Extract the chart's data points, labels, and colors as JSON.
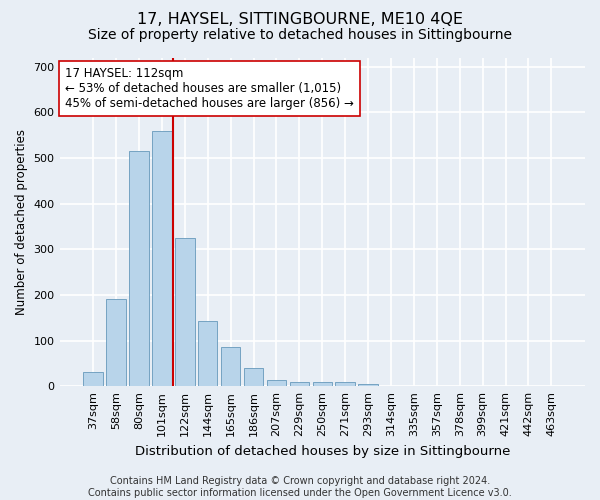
{
  "title": "17, HAYSEL, SITTINGBOURNE, ME10 4QE",
  "subtitle": "Size of property relative to detached houses in Sittingbourne",
  "xlabel": "Distribution of detached houses by size in Sittingbourne",
  "ylabel": "Number of detached properties",
  "categories": [
    "37sqm",
    "58sqm",
    "80sqm",
    "101sqm",
    "122sqm",
    "144sqm",
    "165sqm",
    "186sqm",
    "207sqm",
    "229sqm",
    "250sqm",
    "271sqm",
    "293sqm",
    "314sqm",
    "335sqm",
    "357sqm",
    "378sqm",
    "399sqm",
    "421sqm",
    "442sqm",
    "463sqm"
  ],
  "values": [
    30,
    191,
    515,
    560,
    325,
    143,
    85,
    40,
    13,
    10,
    10,
    10,
    5,
    0,
    0,
    0,
    0,
    0,
    0,
    0,
    0
  ],
  "bar_color": "#b8d4ea",
  "bar_edge_color": "#6699bb",
  "vline_x_index": 3.5,
  "vline_color": "#cc0000",
  "annotation_line1": "17 HAYSEL: 112sqm",
  "annotation_line2": "← 53% of detached houses are smaller (1,015)",
  "annotation_line3": "45% of semi-detached houses are larger (856) →",
  "annotation_box_color": "#ffffff",
  "annotation_box_edge": "#cc0000",
  "ylim": [
    0,
    720
  ],
  "yticks": [
    0,
    100,
    200,
    300,
    400,
    500,
    600,
    700
  ],
  "bg_color": "#e8eef5",
  "plot_bg_color": "#e8eef5",
  "grid_color": "#ffffff",
  "footer": "Contains HM Land Registry data © Crown copyright and database right 2024.\nContains public sector information licensed under the Open Government Licence v3.0.",
  "title_fontsize": 11.5,
  "subtitle_fontsize": 10,
  "xlabel_fontsize": 9.5,
  "ylabel_fontsize": 8.5,
  "tick_fontsize": 8,
  "annotation_fontsize": 8.5,
  "footer_fontsize": 7
}
